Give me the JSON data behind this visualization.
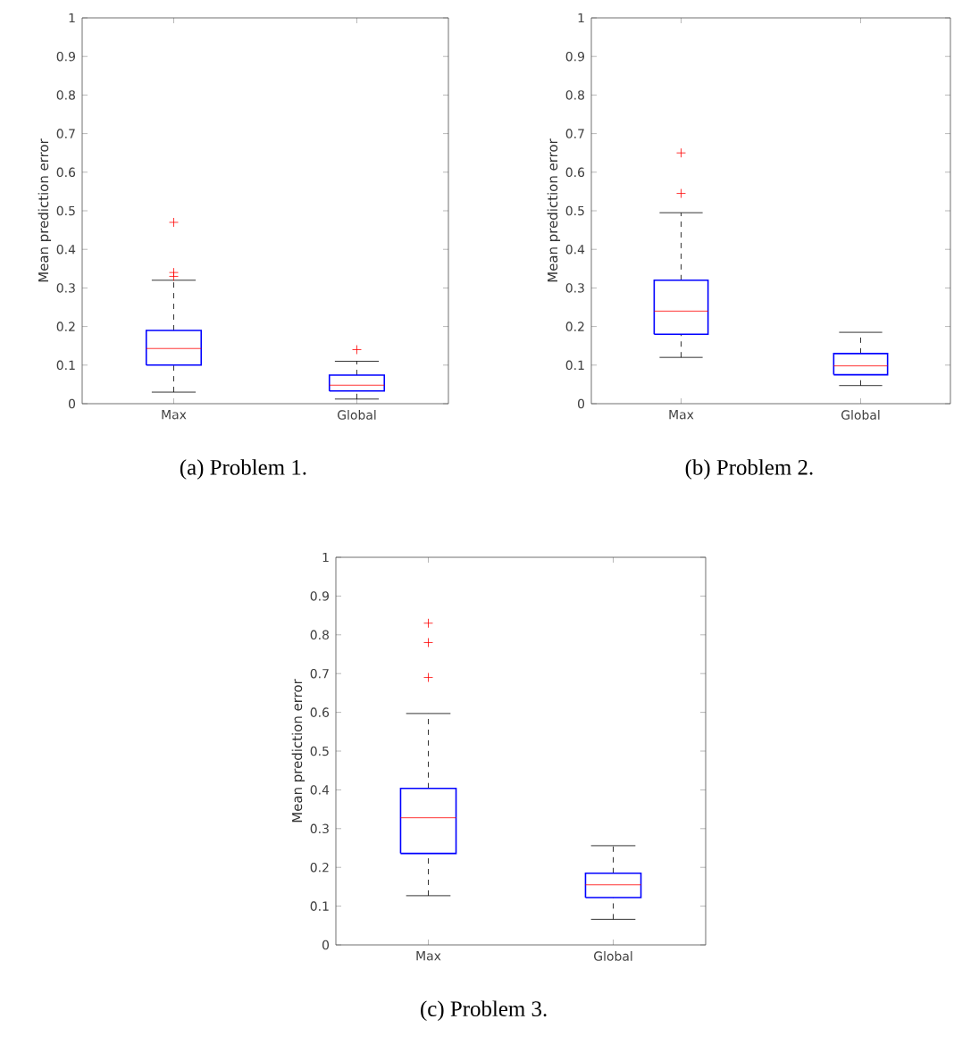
{
  "chart_data": [
    {
      "type": "box",
      "ylabel": "Mean prediction error",
      "categories": [
        "Max",
        "Global"
      ],
      "color": "#0000ff",
      "ylim": [
        0,
        1
      ],
      "yticks": [
        0,
        0.1,
        0.2,
        0.3,
        0.4,
        0.5,
        0.6,
        0.7,
        0.8,
        0.9,
        1
      ],
      "annotations": [
        "(a) Problem 1."
      ],
      "boxes": [
        {
          "low": 0.03,
          "q1": 0.1,
          "median": 0.143,
          "q3": 0.19,
          "high": 0.32,
          "outliers": [
            0.47,
            0.34,
            0.33
          ]
        },
        {
          "low": 0.012,
          "q1": 0.033,
          "median": 0.048,
          "q3": 0.074,
          "high": 0.11,
          "outliers": [
            0.14
          ]
        }
      ]
    },
    {
      "type": "box",
      "ylabel": "Mean prediction error",
      "categories": [
        "Max",
        "Global"
      ],
      "color": "#0000ff",
      "ylim": [
        0,
        1
      ],
      "yticks": [
        0,
        0.1,
        0.2,
        0.3,
        0.4,
        0.5,
        0.6,
        0.7,
        0.8,
        0.9,
        1
      ],
      "annotations": [
        "(b) Problem 2."
      ],
      "boxes": [
        {
          "low": 0.12,
          "q1": 0.18,
          "median": 0.24,
          "q3": 0.32,
          "high": 0.495,
          "outliers": [
            0.65,
            0.545
          ]
        },
        {
          "low": 0.047,
          "q1": 0.075,
          "median": 0.098,
          "q3": 0.13,
          "high": 0.185
        }
      ]
    },
    {
      "type": "box",
      "ylabel": "Mean prediction error",
      "categories": [
        "Max",
        "Global"
      ],
      "color": "#0000ff",
      "ylim": [
        0,
        1
      ],
      "yticks": [
        0,
        0.1,
        0.2,
        0.3,
        0.4,
        0.5,
        0.6,
        0.7,
        0.8,
        0.9,
        1
      ],
      "annotations": [
        "(c) Problem 3."
      ],
      "boxes": [
        {
          "low": 0.127,
          "q1": 0.236,
          "median": 0.328,
          "q3": 0.404,
          "high": 0.597,
          "outliers": [
            0.69,
            0.78,
            0.83
          ]
        },
        {
          "low": 0.066,
          "q1": 0.122,
          "median": 0.155,
          "q3": 0.185,
          "high": 0.256
        }
      ]
    }
  ]
}
